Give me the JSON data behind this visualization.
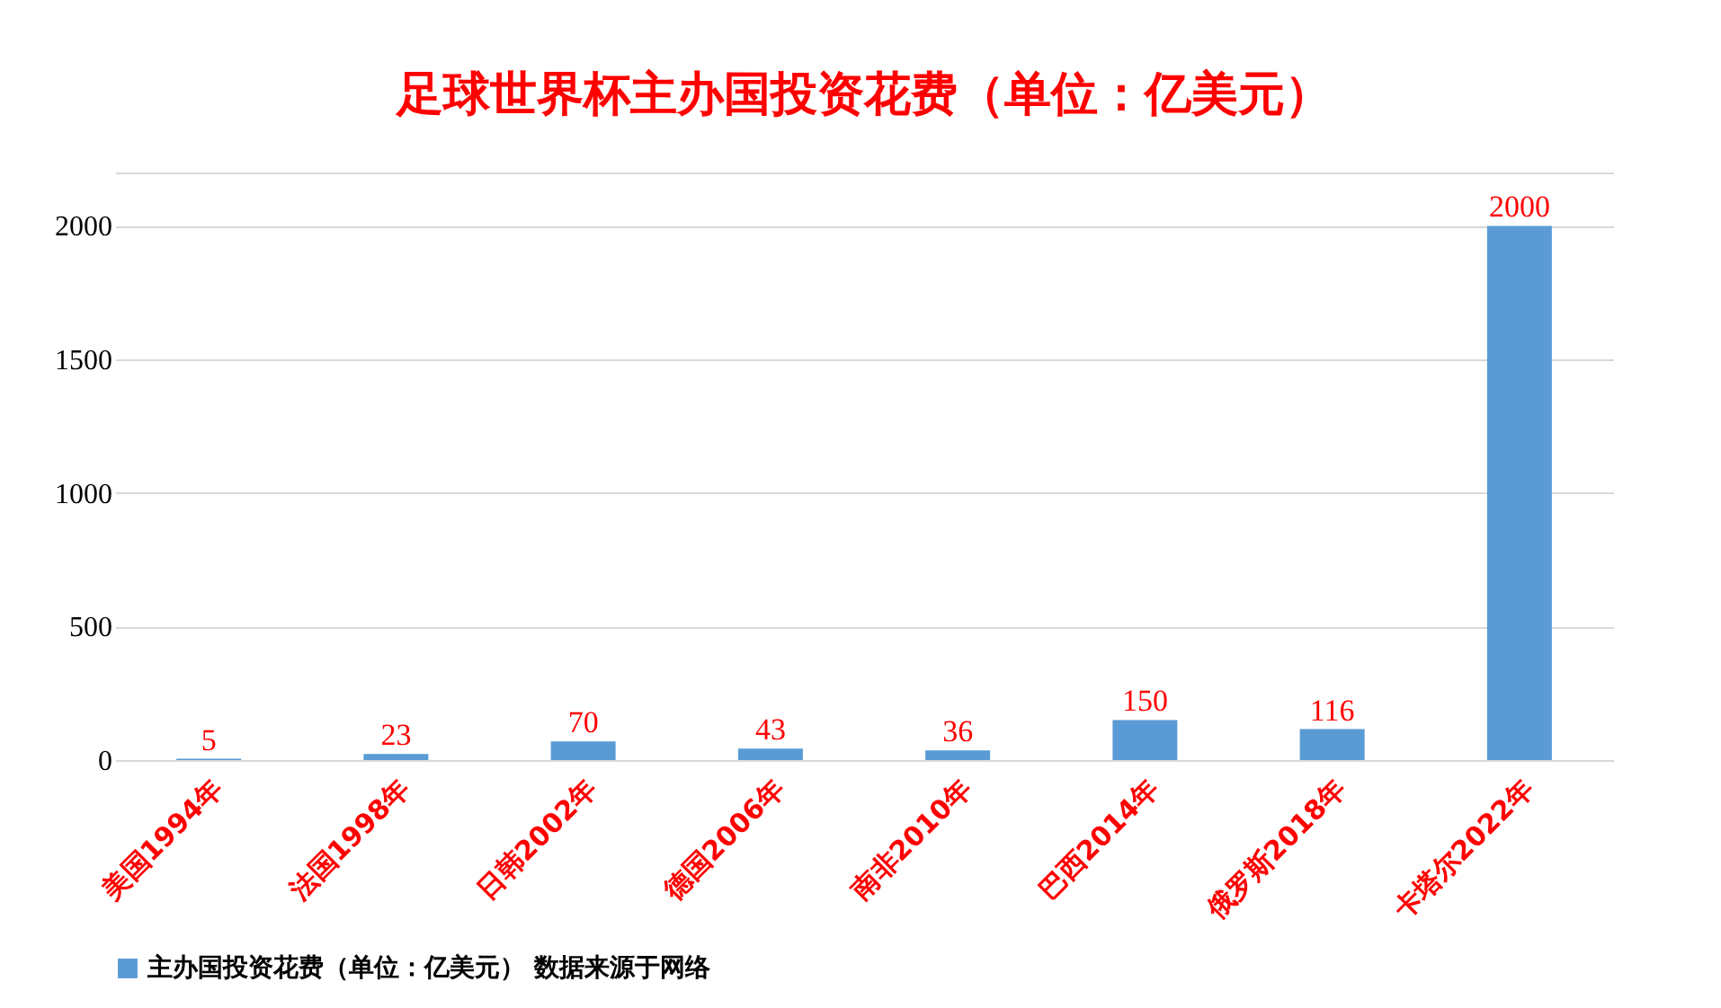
{
  "chart_data": {
    "type": "bar",
    "title": "足球世界杯主办国投资花费（单位：亿美元）",
    "categories": [
      "美国1994年",
      "法国1998年",
      "日韩2002年",
      "德国2006年",
      "南非2010年",
      "巴西2014年",
      "俄罗斯2018年",
      "卡塔尔2022年"
    ],
    "series": [
      {
        "name": "主办国投资花费（单位：亿美元） 数据来源于网络",
        "color": "#5b9bd5",
        "values": [
          5,
          23,
          70,
          43,
          36,
          150,
          116,
          2000
        ]
      }
    ],
    "ylim": [
      0,
      2200
    ],
    "yticks": [
      0,
      500,
      1000,
      1500,
      2000,
      {
        "value": 2200,
        "label": null
      }
    ],
    "grid": "y",
    "legend": "bottom",
    "data_labels": true
  }
}
